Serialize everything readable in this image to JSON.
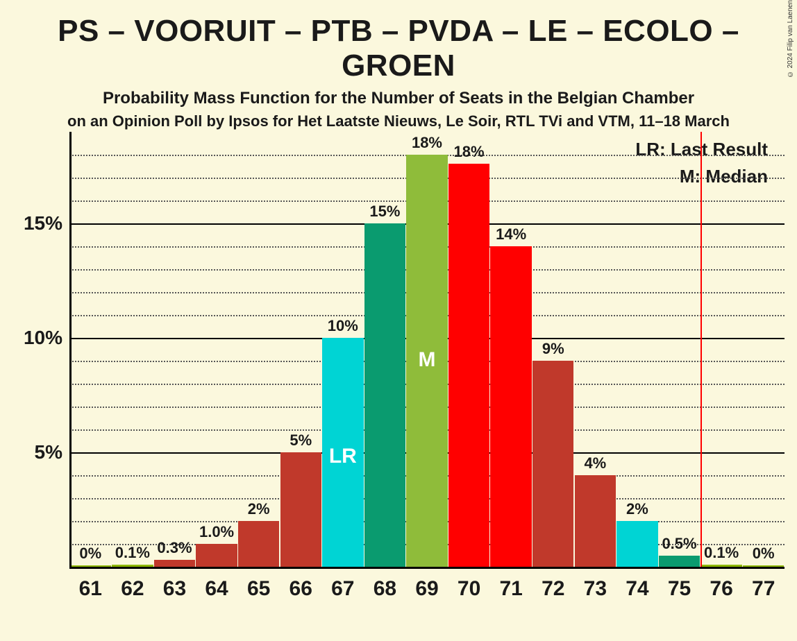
{
  "title": "PS – VOORUIT – PTB – PVDA – LE – ECOLO – GROEN",
  "subtitle1": "Probability Mass Function for the Number of Seats in the Belgian Chamber",
  "subtitle2": "on an Opinion Poll by Ipsos for Het Laatste Nieuws, Le Soir, RTL TVi and VTM, 11–18 March",
  "copyright": "© 2024 Filip van Laenen",
  "chart": {
    "type": "bar",
    "background_color": "#fbf8dd",
    "axis_color": "#000000",
    "grid_minor_color": "#555555",
    "ylim": [
      0,
      19
    ],
    "y_major_ticks": [
      5,
      10,
      15
    ],
    "y_minor_step": 1,
    "y_tick_labels": {
      "5": "5%",
      "10": "10%",
      "15": "15%"
    },
    "x_categories": [
      "61",
      "62",
      "63",
      "64",
      "65",
      "66",
      "67",
      "68",
      "69",
      "70",
      "71",
      "72",
      "73",
      "74",
      "75",
      "76",
      "77"
    ],
    "bar_width_ratio": 0.98,
    "label_fontsize": 22,
    "axis_label_fontsize": 28,
    "x_label_fontsize": 30,
    "colors": {
      "red_bright": "#ff0000",
      "red_muted": "#c0392b",
      "olive": "#8db600",
      "olive_median": "#8fbc3a",
      "cyan": "#00d4d4",
      "teal": "#0a9b6f"
    },
    "bars": [
      {
        "x": "61",
        "value": 0,
        "label": "0%",
        "color": "#8db600"
      },
      {
        "x": "62",
        "value": 0.1,
        "label": "0.1%",
        "color": "#8db600"
      },
      {
        "x": "63",
        "value": 0.3,
        "label": "0.3%",
        "color": "#c0392b"
      },
      {
        "x": "64",
        "value": 1.0,
        "label": "1.0%",
        "color": "#c0392b"
      },
      {
        "x": "65",
        "value": 2,
        "label": "2%",
        "color": "#c0392b"
      },
      {
        "x": "66",
        "value": 5,
        "label": "5%",
        "color": "#c0392b"
      },
      {
        "x": "67",
        "value": 10,
        "label": "10%",
        "color": "#00d4d4",
        "inner": "LR",
        "inner_pos": 0.48
      },
      {
        "x": "68",
        "value": 15,
        "label": "15%",
        "color": "#0a9b6f"
      },
      {
        "x": "69",
        "value": 18,
        "label": "18%",
        "color": "#8fbc3a",
        "inner": "M",
        "inner_pos": 0.5
      },
      {
        "x": "70",
        "value": 17.6,
        "label": "18%",
        "color": "#ff0000"
      },
      {
        "x": "71",
        "value": 14,
        "label": "14%",
        "color": "#ff0000"
      },
      {
        "x": "72",
        "value": 9,
        "label": "9%",
        "color": "#c0392b"
      },
      {
        "x": "73",
        "value": 4,
        "label": "4%",
        "color": "#c0392b"
      },
      {
        "x": "74",
        "value": 2,
        "label": "2%",
        "color": "#00d4d4"
      },
      {
        "x": "75",
        "value": 0.5,
        "label": "0.5%",
        "color": "#0a9b6f"
      },
      {
        "x": "76",
        "value": 0.1,
        "label": "0.1%",
        "color": "#8db600"
      },
      {
        "x": "77",
        "value": 0,
        "label": "0%",
        "color": "#8db600"
      }
    ],
    "majority_line_x": 75.5,
    "majority_line_color": "#ff0000",
    "legend": {
      "lr": "LR: Last Result",
      "m": "M: Median"
    }
  }
}
